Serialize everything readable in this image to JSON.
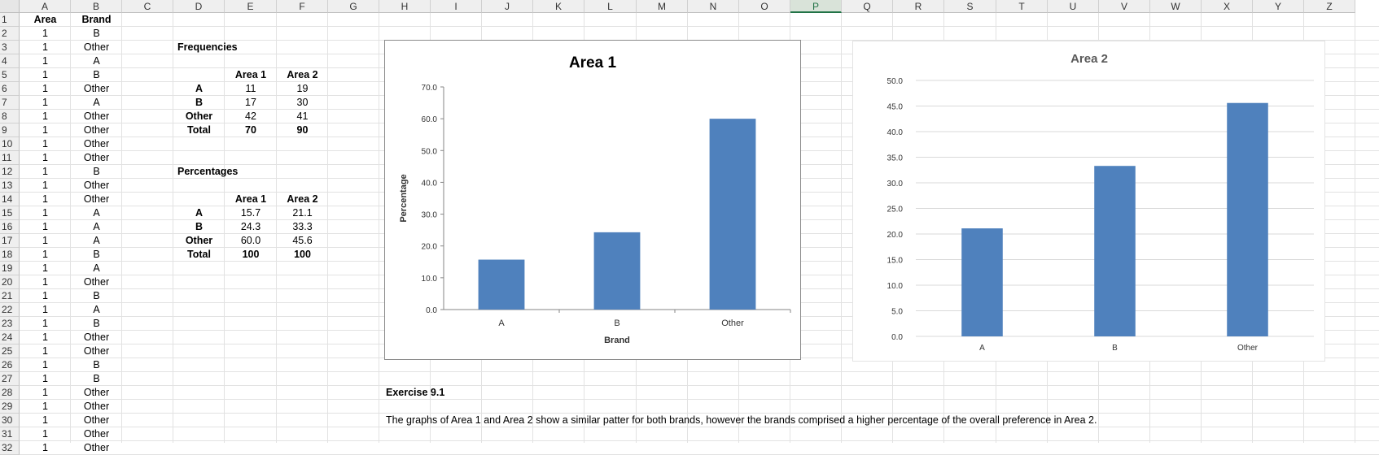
{
  "columns": [
    "A",
    "B",
    "C",
    "D",
    "E",
    "F",
    "G",
    "H",
    "I",
    "J",
    "K",
    "L",
    "M",
    "N",
    "O",
    "P",
    "Q",
    "R",
    "S",
    "T",
    "U",
    "V",
    "W",
    "X",
    "Y",
    "Z"
  ],
  "selected_column": "P",
  "rows": [
    "1",
    "2",
    "3",
    "4",
    "5",
    "6",
    "7",
    "8",
    "9",
    "10",
    "11",
    "12",
    "13",
    "14",
    "15",
    "16",
    "17",
    "18",
    "19",
    "20",
    "21",
    "22",
    "23",
    "24",
    "25",
    "26",
    "27",
    "28",
    "29",
    "30",
    "31",
    "32"
  ],
  "data_header": {
    "area": "Area",
    "brand": "Brand"
  },
  "data_area": [
    "1",
    "1",
    "1",
    "1",
    "1",
    "1",
    "1",
    "1",
    "1",
    "1",
    "1",
    "1",
    "1",
    "1",
    "1",
    "1",
    "1",
    "1",
    "1",
    "1",
    "1",
    "1",
    "1",
    "1",
    "1",
    "1",
    "1",
    "1",
    "1",
    "1",
    "1"
  ],
  "data_brand": [
    "B",
    "Other",
    "A",
    "B",
    "Other",
    "A",
    "Other",
    "Other",
    "Other",
    "Other",
    "B",
    "Other",
    "Other",
    "A",
    "A",
    "A",
    "B",
    "A",
    "Other",
    "B",
    "A",
    "B",
    "Other",
    "Other",
    "B",
    "B",
    "Other",
    "Other",
    "Other",
    "Other",
    "Other"
  ],
  "frequencies": {
    "title": "Frequencies",
    "col1": "Area 1",
    "col2": "Area 2",
    "rows": [
      {
        "label": "A",
        "v1": "11",
        "v2": "19"
      },
      {
        "label": "B",
        "v1": "17",
        "v2": "30"
      },
      {
        "label": "Other",
        "v1": "42",
        "v2": "41"
      },
      {
        "label": "Total",
        "v1": "70",
        "v2": "90"
      }
    ]
  },
  "percentages": {
    "title": "Percentages",
    "col1": "Area 1",
    "col2": "Area 2",
    "rows": [
      {
        "label": "A",
        "v1": "15.7",
        "v2": "21.1"
      },
      {
        "label": "B",
        "v1": "24.3",
        "v2": "33.3"
      },
      {
        "label": "Other",
        "v1": "60.0",
        "v2": "45.6"
      },
      {
        "label": "Total",
        "v1": "100",
        "v2": "100"
      }
    ]
  },
  "exercise": {
    "title": "Exercise 9.1",
    "text": "The graphs of Area 1 and Area 2 show a similar patter for both brands, however the brands comprised a higher percentage of the overall preference in Area 2."
  },
  "colors": {
    "bar": "#4f81bd"
  },
  "chart_data": [
    {
      "type": "bar",
      "title": "Area 1",
      "categories": [
        "A",
        "B",
        "Other"
      ],
      "values": [
        15.7,
        24.3,
        60.0
      ],
      "xlabel": "Brand",
      "ylabel": "Percentage",
      "ylim": [
        0,
        70
      ],
      "ytick_labels": [
        "0.0",
        "10.0",
        "20.0",
        "30.0",
        "40.0",
        "50.0",
        "60.0",
        "70.0"
      ],
      "grid": false,
      "legend": "none"
    },
    {
      "type": "bar",
      "title": "Area 2",
      "categories": [
        "A",
        "B",
        "Other"
      ],
      "values": [
        21.1,
        33.3,
        45.6
      ],
      "xlabel": "",
      "ylabel": "",
      "ylim": [
        0,
        50
      ],
      "ytick_labels": [
        "0.0",
        "5.0",
        "10.0",
        "15.0",
        "20.0",
        "25.0",
        "30.0",
        "35.0",
        "40.0",
        "45.0",
        "50.0"
      ],
      "grid": true,
      "legend": "none"
    }
  ]
}
